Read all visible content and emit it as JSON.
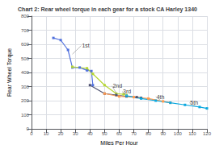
{
  "chart_data": {
    "type": "line",
    "title": "Chart 2: Rear wheel torque in each gear for a stock CA Harley 1340",
    "x_label": "Miles Per Hour",
    "y_label": "Rear Wheel Torque",
    "xlim": [
      0,
      120
    ],
    "ylim": [
      0,
      800
    ],
    "xticks": [
      0,
      10,
      20,
      30,
      40,
      50,
      60,
      70,
      80,
      90,
      100,
      110,
      120
    ],
    "yticks": [
      0,
      100,
      200,
      300,
      400,
      500,
      600,
      700,
      800
    ],
    "grid": true,
    "marker": "square",
    "series": [
      {
        "x": [
          15,
          20,
          25,
          28,
          33,
          38,
          41,
          42
        ],
        "values": [
          645,
          630,
          560,
          435,
          435,
          415,
          410,
          310
        ]
      },
      {
        "x": [
          28,
          38,
          42,
          50,
          58,
          63,
          65
        ],
        "values": [
          440,
          430,
          390,
          310,
          250,
          245,
          240
        ]
      },
      {
        "x": [
          40,
          50,
          58,
          65,
          72,
          75
        ],
        "values": [
          310,
          250,
          240,
          230,
          225,
          220
        ]
      },
      {
        "x": [
          50,
          60,
          70,
          80,
          90,
          95
        ],
        "values": [
          250,
          230,
          225,
          215,
          195,
          185
        ]
      },
      {
        "x": [
          65,
          75,
          85,
          95,
          105,
          115,
          120
        ],
        "values": [
          235,
          215,
          200,
          185,
          170,
          155,
          145
        ]
      }
    ],
    "annotations": [
      {
        "text": "1st",
        "x": 34,
        "y": 590,
        "arrow_x": 28,
        "arrow_y": 530
      },
      {
        "text": "2nd",
        "x": 55,
        "y": 305,
        "arrow_x": 58,
        "arrow_y": 255
      },
      {
        "text": "3rd",
        "x": 62,
        "y": 265,
        "arrow_x": 65,
        "arrow_y": 238
      },
      {
        "text": "4th",
        "x": 85,
        "y": 228,
        "arrow_x": 88,
        "arrow_y": 205
      },
      {
        "text": "5th",
        "x": 108,
        "y": 185,
        "arrow_x": 112,
        "arrow_y": 165
      }
    ]
  }
}
